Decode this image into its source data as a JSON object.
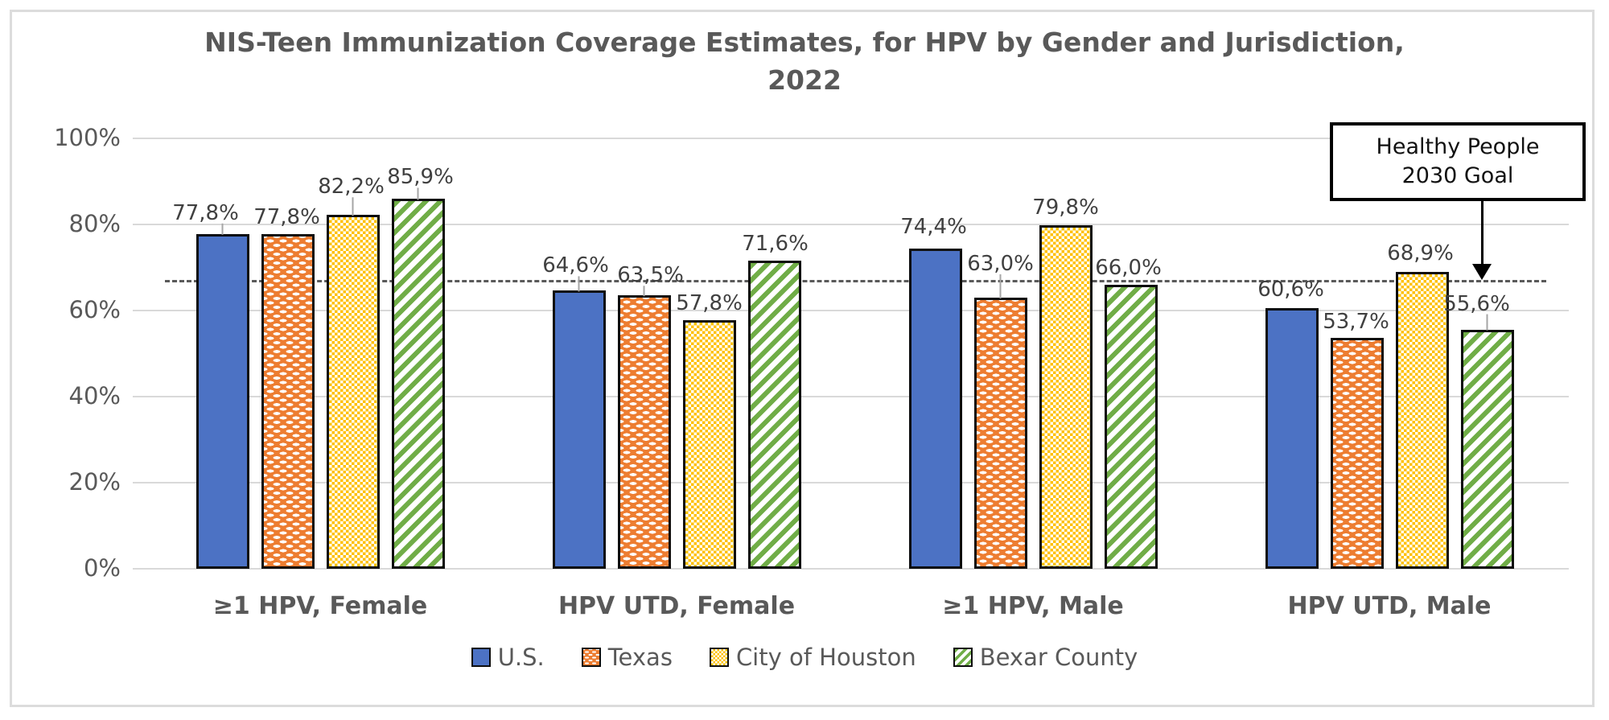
{
  "window": {
    "background": "#ffffff",
    "card_border_color": "#dcdcdc"
  },
  "chart_data": {
    "type": "bar",
    "title": "NIS-Teen Immunization Coverage Estimates, for HPV by Gender and Jurisdiction, 2022",
    "categories": [
      "≥1 HPV, Female",
      "HPV UTD, Female",
      "≥1 HPV, Male",
      "HPV UTD, Male"
    ],
    "series": [
      {
        "name": "U.S.",
        "color": "#4C72C4",
        "pattern": "solid",
        "values": [
          77.8,
          64.6,
          74.4,
          60.6
        ],
        "data_labels": [
          "77,8%",
          "64,6%",
          "74,4%",
          "60,6%"
        ]
      },
      {
        "name": "Texas",
        "color": "#ED7D31",
        "pattern": "horizontal-dashes",
        "values": [
          77.8,
          63.5,
          63.0,
          53.7
        ],
        "data_labels": [
          "77,8%",
          "63,5%",
          "63,0%",
          "53,7%"
        ]
      },
      {
        "name": "City of Houston",
        "color": "#FFC000",
        "pattern": "checker",
        "values": [
          82.2,
          57.8,
          79.8,
          68.9
        ],
        "data_labels": [
          "82,2%",
          "57,8%",
          "79,8%",
          "68,9%"
        ]
      },
      {
        "name": "Bexar County",
        "color": "#70AD47",
        "pattern": "diagonal-stripes",
        "values": [
          85.9,
          71.6,
          66.0,
          55.6
        ],
        "data_labels": [
          "85,9%",
          "71,6%",
          "66,0%",
          "55,6%"
        ]
      }
    ],
    "y_axis": {
      "min": 0,
      "max": 100,
      "tick_step": 20,
      "tick_labels": [
        "0%",
        "20%",
        "40%",
        "60%",
        "80%",
        "100%"
      ],
      "grid": true
    },
    "goal_line": {
      "value_pct": 67,
      "style": "dashed",
      "color": "#5a5a5a"
    },
    "annotation": {
      "line1": "Healthy People",
      "line2": "2030 Goal"
    },
    "legend": {
      "position": "bottom",
      "entries": [
        "U.S.",
        "Texas",
        "City of Houston",
        "Bexar County"
      ]
    },
    "layout": {
      "grid_color": "#d9d9d9",
      "bar_border_color": "#0d0d0d",
      "leader_color": "#a6a6a6",
      "label_offsets": [
        [
          [
            -21,
            -41,
            1
          ],
          [
            -4,
            -46,
            1
          ],
          [
            -2,
            -42,
            0
          ],
          [
            -1,
            -38,
            0
          ]
        ],
        [
          [
            -1,
            -36,
            0
          ],
          [
            8,
            -40,
            1
          ],
          [
            0,
            -57,
            1
          ],
          [
            -1,
            -35,
            0
          ]
        ],
        [
          [
            -2,
            -50,
            1
          ],
          [
            0,
            -36,
            0
          ],
          [
            0,
            -37,
            0
          ],
          [
            -2,
            -38,
            0
          ]
        ],
        [
          [
            3,
            -42,
            1
          ],
          [
            1,
            -36,
            0
          ],
          [
            -3,
            -36,
            0
          ],
          [
            -13,
            -47,
            1
          ]
        ]
      ]
    }
  }
}
